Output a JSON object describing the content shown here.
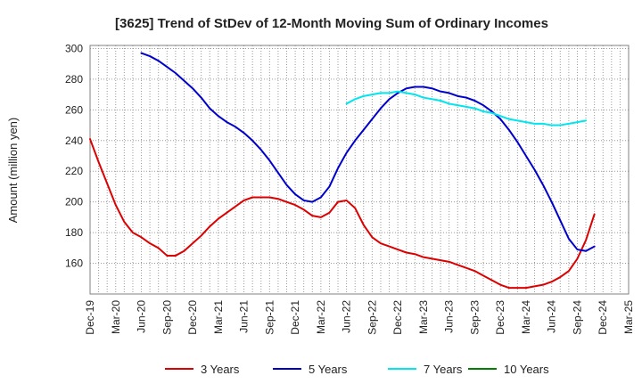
{
  "chart_data": {
    "type": "line",
    "title": "[3625]  Trend of StDev of 12-Month Moving Sum of Ordinary Incomes",
    "xlabel": "",
    "ylabel": "Amount (million yen)",
    "x_tick_labels": [
      "Dec-19",
      "Mar-20",
      "Jun-20",
      "Sep-20",
      "Dec-20",
      "Mar-21",
      "Jun-21",
      "Sep-21",
      "Dec-21",
      "Mar-22",
      "Jun-22",
      "Sep-22",
      "Dec-22",
      "Mar-23",
      "Jun-23",
      "Sep-23",
      "Dec-23",
      "Mar-24",
      "Jun-24",
      "Sep-24",
      "Dec-24",
      "Mar-25"
    ],
    "y_ticks": [
      160,
      180,
      200,
      220,
      240,
      260,
      280,
      300
    ],
    "ylim": [
      140,
      302
    ],
    "grid": true,
    "legend_position": "bottom",
    "series": [
      {
        "name": "3 Years",
        "color": "#dd0000",
        "start_month": 0,
        "values": [
          241,
          226,
          212,
          198,
          187,
          180,
          177,
          173,
          170,
          165,
          165,
          168,
          173,
          178,
          184,
          189,
          193,
          197,
          201,
          203,
          203,
          203,
          202,
          200,
          198,
          195,
          191,
          190,
          193,
          200,
          201,
          196,
          185,
          177,
          173,
          171,
          169,
          167,
          166,
          164,
          163,
          162,
          161,
          159,
          157,
          155,
          152,
          149,
          146,
          144,
          144,
          144,
          145,
          146,
          148,
          151,
          155,
          163,
          175,
          192
        ]
      },
      {
        "name": "5 Years",
        "color": "#0000cc",
        "start_month": 6,
        "values": [
          297,
          295,
          292,
          288,
          284,
          279,
          274,
          268,
          261,
          256,
          252,
          249,
          245,
          240,
          234,
          227,
          219,
          211,
          205,
          201,
          200,
          203,
          210,
          222,
          232,
          240,
          247,
          254,
          261,
          267,
          271,
          274,
          275,
          275,
          274,
          272,
          271,
          269,
          268,
          266,
          263,
          259,
          254,
          247,
          239,
          230,
          221,
          211,
          200,
          188,
          176,
          169,
          168,
          171
        ]
      },
      {
        "name": "7 Years",
        "color": "#00e5ee",
        "start_month": 30,
        "values": [
          264,
          267,
          269,
          270,
          271,
          271,
          272,
          271,
          270,
          268,
          267,
          266,
          264,
          263,
          262,
          261,
          259,
          258,
          256,
          254,
          253,
          252,
          251,
          251,
          250,
          250,
          251,
          252,
          253
        ]
      },
      {
        "name": "10 Years",
        "color": "#008000",
        "start_month": 0,
        "values": []
      }
    ]
  }
}
